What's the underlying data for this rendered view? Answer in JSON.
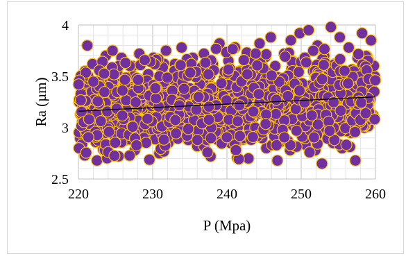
{
  "chart_data": {
    "type": "scatter",
    "title": "",
    "xlabel": "P (Mpa)",
    "ylabel": "Ra (µm)",
    "xlim": [
      220,
      260
    ],
    "ylim": [
      2.5,
      4
    ],
    "xticks": [
      220,
      230,
      240,
      250,
      260
    ],
    "yticks": [
      2.5,
      3,
      3.5,
      4
    ],
    "xtick_labels": [
      "220",
      "230",
      "240",
      "250",
      "260"
    ],
    "ytick_labels": [
      "2.5",
      "3",
      "3.5",
      "4"
    ],
    "grid": true,
    "legend": "none",
    "marker_fill": "#7030a0",
    "marker_edge": "#ffc000",
    "trendline": {
      "type": "linear",
      "x": [
        220,
        260
      ],
      "y": [
        3.16,
        3.3
      ]
    },
    "point_count_note": "dense cloud of approximately 1200 points spanning x 220-260 and y 2.65-3.98",
    "points": [
      [
        220.1,
        3.25
      ],
      [
        220.3,
        3.42
      ],
      [
        220.6,
        3.18
      ],
      [
        220.9,
        3.55
      ],
      [
        221.2,
        3.8
      ],
      [
        221.4,
        3.35
      ],
      [
        221.7,
        3.05
      ],
      [
        221.9,
        3.62
      ],
      [
        222.2,
        2.92
      ],
      [
        222.5,
        2.68
      ],
      [
        222.8,
        3.28
      ],
      [
        223.1,
        3.48
      ],
      [
        223.4,
        3.1
      ],
      [
        223.7,
        3.7
      ],
      [
        224.0,
        2.98
      ],
      [
        224.3,
        3.38
      ],
      [
        224.6,
        3.75
      ],
      [
        224.9,
        3.22
      ],
      [
        225.2,
        3.55
      ],
      [
        225.5,
        3.02
      ],
      [
        225.8,
        3.68
      ],
      [
        226.1,
        3.3
      ],
      [
        226.4,
        2.88
      ],
      [
        226.7,
        3.45
      ],
      [
        227.0,
        3.15
      ],
      [
        227.3,
        3.6
      ],
      [
        227.6,
        2.78
      ],
      [
        227.9,
        3.4
      ],
      [
        228.2,
        3.72
      ],
      [
        228.5,
        3.05
      ],
      [
        228.8,
        3.25
      ],
      [
        229.1,
        2.9
      ],
      [
        229.4,
        3.52
      ],
      [
        229.7,
        3.18
      ],
      [
        230.0,
        3.65
      ],
      [
        230.3,
        3.0
      ],
      [
        230.6,
        3.35
      ],
      [
        230.9,
        2.75
      ],
      [
        231.2,
        3.58
      ],
      [
        231.5,
        3.12
      ],
      [
        231.8,
        3.75
      ],
      [
        232.1,
        2.85
      ],
      [
        232.4,
        3.42
      ],
      [
        232.7,
        3.2
      ],
      [
        233.0,
        3.62
      ],
      [
        233.3,
        2.95
      ],
      [
        233.6,
        3.3
      ],
      [
        233.9,
        3.78
      ],
      [
        234.2,
        3.08
      ],
      [
        234.5,
        3.5
      ],
      [
        234.8,
        2.88
      ],
      [
        235.1,
        3.38
      ],
      [
        235.4,
        3.68
      ],
      [
        235.7,
        3.15
      ],
      [
        236.0,
        2.82
      ],
      [
        236.3,
        3.55
      ],
      [
        236.6,
        3.25
      ],
      [
        236.9,
        3.72
      ],
      [
        237.2,
        2.92
      ],
      [
        237.5,
        3.45
      ],
      [
        237.8,
        2.72
      ],
      [
        238.1,
        3.62
      ],
      [
        238.4,
        3.1
      ],
      [
        238.7,
        3.35
      ],
      [
        239.0,
        3.82
      ],
      [
        239.3,
        2.98
      ],
      [
        239.6,
        3.48
      ],
      [
        239.9,
        3.2
      ],
      [
        240.2,
        3.65
      ],
      [
        240.5,
        2.85
      ],
      [
        240.8,
        3.4
      ],
      [
        241.1,
        3.78
      ],
      [
        241.4,
        3.05
      ],
      [
        241.7,
        3.55
      ],
      [
        242.0,
        2.9
      ],
      [
        242.3,
        3.3
      ],
      [
        242.6,
        3.7
      ],
      [
        242.9,
        2.7
      ],
      [
        243.2,
        3.45
      ],
      [
        243.5,
        3.15
      ],
      [
        243.8,
        3.62
      ],
      [
        244.1,
        2.95
      ],
      [
        244.4,
        3.82
      ],
      [
        244.7,
        3.25
      ],
      [
        245.0,
        3.52
      ],
      [
        245.3,
        2.8
      ],
      [
        245.6,
        3.38
      ],
      [
        245.9,
        3.88
      ],
      [
        246.2,
        3.08
      ],
      [
        246.5,
        3.6
      ],
      [
        246.8,
        2.68
      ],
      [
        247.1,
        3.42
      ],
      [
        247.4,
        3.18
      ],
      [
        247.7,
        3.72
      ],
      [
        248.0,
        2.88
      ],
      [
        248.3,
        3.48
      ],
      [
        248.6,
        3.85
      ],
      [
        248.9,
        3.02
      ],
      [
        249.2,
        3.58
      ],
      [
        249.5,
        3.28
      ],
      [
        249.8,
        3.92
      ],
      [
        250.1,
        2.92
      ],
      [
        250.4,
        3.65
      ],
      [
        250.7,
        3.35
      ],
      [
        251.0,
        3.95
      ],
      [
        251.3,
        3.12
      ],
      [
        251.6,
        3.55
      ],
      [
        251.9,
        2.78
      ],
      [
        252.2,
        3.8
      ],
      [
        252.5,
        3.25
      ],
      [
        252.8,
        2.65
      ],
      [
        253.1,
        3.7
      ],
      [
        253.4,
        3.05
      ],
      [
        253.7,
        3.48
      ],
      [
        254.0,
        3.98
      ],
      [
        254.3,
        2.85
      ],
      [
        254.6,
        3.62
      ],
      [
        254.9,
        3.3
      ],
      [
        255.2,
        3.88
      ],
      [
        255.5,
        2.8
      ],
      [
        255.8,
        3.52
      ],
      [
        256.1,
        3.15
      ],
      [
        256.4,
        3.78
      ],
      [
        256.7,
        2.95
      ],
      [
        257.0,
        3.42
      ],
      [
        257.3,
        2.68
      ],
      [
        257.6,
        3.68
      ],
      [
        257.9,
        3.22
      ],
      [
        258.2,
        3.92
      ],
      [
        258.5,
        3.0
      ],
      [
        258.8,
        3.58
      ],
      [
        259.1,
        3.35
      ],
      [
        259.4,
        3.85
      ],
      [
        259.7,
        3.12
      ],
      [
        259.9,
        3.5
      ]
    ]
  }
}
